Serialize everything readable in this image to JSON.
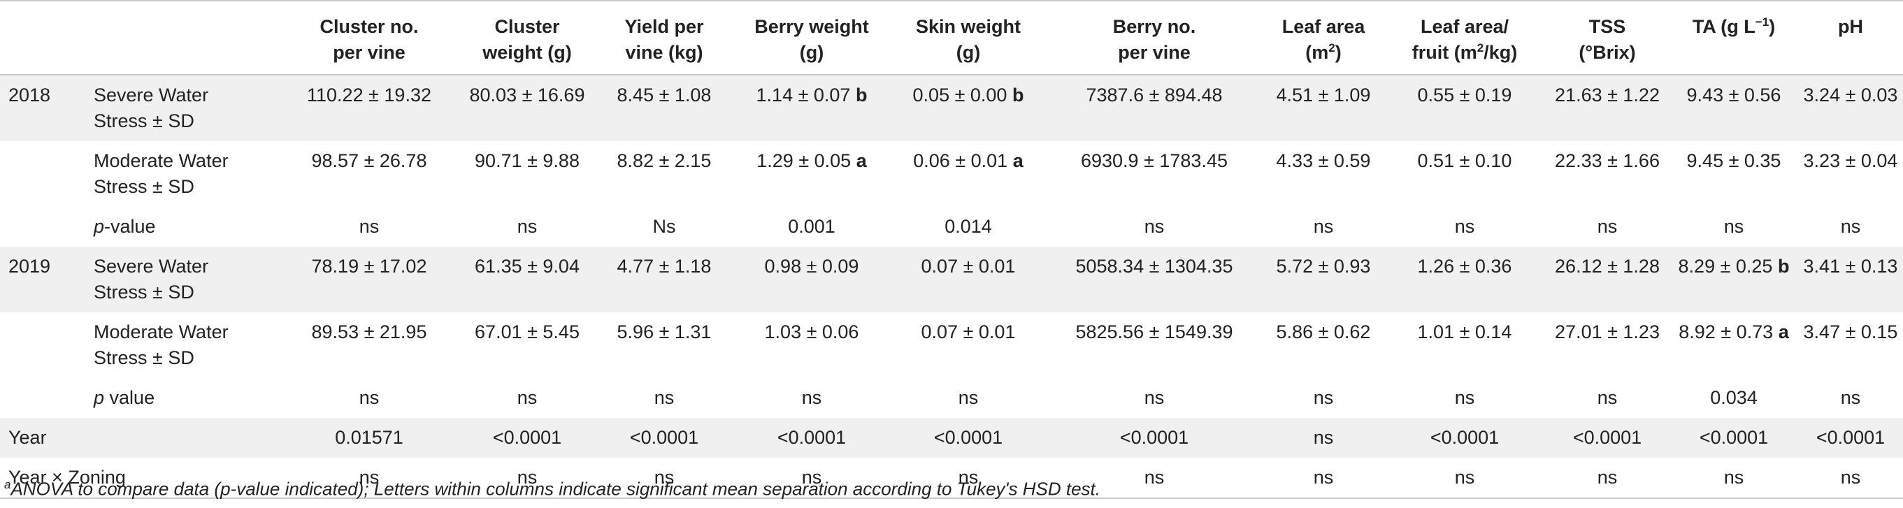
{
  "headers": {
    "cluster_no": [
      "Cluster no.",
      "per vine"
    ],
    "cluster_weight": [
      "Cluster",
      "weight (g)"
    ],
    "yield": [
      "Yield per",
      "vine (kg)"
    ],
    "berry_weight": [
      "Berry weight",
      "(g)"
    ],
    "skin_weight": [
      "Skin weight",
      "(g)"
    ],
    "berry_no": [
      "Berry no.",
      "per vine"
    ],
    "leaf_area": [
      "Leaf area",
      "(m",
      "2",
      ")"
    ],
    "leaf_fruit": [
      "Leaf area/",
      "fruit (m",
      "2",
      "/kg)"
    ],
    "tss": [
      "TSS",
      "(°Brix)"
    ],
    "ta": [
      "TA (g L",
      "−1",
      ")"
    ],
    "ph": "pH"
  },
  "rows": [
    {
      "year": "2018",
      "treatment": [
        "Severe Water",
        "Stress ± SD"
      ],
      "cells": [
        "110.22 ± 19.32",
        "80.03 ± 16.69",
        "8.45 ± 1.08",
        "1.14 ± 0.07",
        "0.05 ± 0.00",
        "7387.6 ± 894.48",
        "4.51 ± 1.09",
        "0.55 ± 0.19",
        "21.63 ± 1.22",
        "9.43 ± 0.56",
        "3.24 ± 0.03"
      ],
      "letters": [
        "",
        "",
        "",
        "b",
        "b",
        "",
        "",
        "",
        "",
        "",
        ""
      ]
    },
    {
      "year": "",
      "treatment": [
        "Moderate Water",
        "Stress ± SD"
      ],
      "cells": [
        "98.57 ± 26.78",
        "90.71 ± 9.88",
        "8.82 ± 2.15",
        "1.29 ± 0.05",
        "0.06 ± 0.01",
        "6930.9 ± 1783.45",
        "4.33 ± 0.59",
        "0.51 ± 0.10",
        "22.33 ± 1.66",
        "9.45 ± 0.35",
        "3.23 ± 0.04"
      ],
      "letters": [
        "",
        "",
        "",
        "a",
        "a",
        "",
        "",
        "",
        "",
        "",
        ""
      ]
    },
    {
      "year": "",
      "treatment_italic": "p",
      "treatment_rest": "-value",
      "cells": [
        "ns",
        "ns",
        "Ns",
        "0.001",
        "0.014",
        "ns",
        "ns",
        "ns",
        "ns",
        "ns",
        "ns"
      ]
    },
    {
      "year": "2019",
      "treatment": [
        "Severe Water",
        "Stress ± SD"
      ],
      "cells": [
        "78.19 ± 17.02",
        "61.35 ± 9.04",
        "4.77 ± 1.18",
        "0.98 ± 0.09",
        "0.07 ± 0.01",
        "5058.34 ± 1304.35",
        "5.72 ± 0.93",
        "1.26 ± 0.36",
        "26.12 ± 1.28",
        "8.29 ± 0.25",
        "3.41 ± 0.13"
      ],
      "letters": [
        "",
        "",
        "",
        "",
        "",
        "",
        "",
        "",
        "",
        "b",
        ""
      ]
    },
    {
      "year": "",
      "treatment": [
        "Moderate Water",
        "Stress ± SD"
      ],
      "cells": [
        "89.53 ± 21.95",
        "67.01 ± 5.45",
        "5.96 ± 1.31",
        "1.03 ± 0.06",
        "0.07 ± 0.01",
        "5825.56 ± 1549.39",
        "5.86 ± 0.62",
        "1.01 ± 0.14",
        "27.01 ± 1.23",
        "8.92 ± 0.73",
        "3.47 ± 0.15"
      ],
      "letters": [
        "",
        "",
        "",
        "",
        "",
        "",
        "",
        "",
        "",
        "a",
        ""
      ]
    },
    {
      "year": "",
      "treatment_italic": "p",
      "treatment_rest": " value",
      "cells": [
        "ns",
        "ns",
        "ns",
        "ns",
        "ns",
        "ns",
        "ns",
        "ns",
        "ns",
        "0.034",
        "ns"
      ]
    },
    {
      "label": "Year",
      "cells": [
        "0.01571",
        "<0.0001",
        "<0.0001",
        "<0.0001",
        "<0.0001",
        "<0.0001",
        "ns",
        "<0.0001",
        "<0.0001",
        "<0.0001",
        "<0.0001"
      ]
    },
    {
      "label": "Year × Zoning",
      "cells": [
        "ns",
        "ns",
        "ns",
        "ns",
        "ns",
        "ns",
        "ns",
        "ns",
        "ns",
        "ns",
        "ns"
      ]
    }
  ],
  "footnote": {
    "sup": "a",
    "text": "ANOVA to compare data (p-value indicated); Letters within columns indicate significant mean separation according to Tukey's HSD test."
  }
}
